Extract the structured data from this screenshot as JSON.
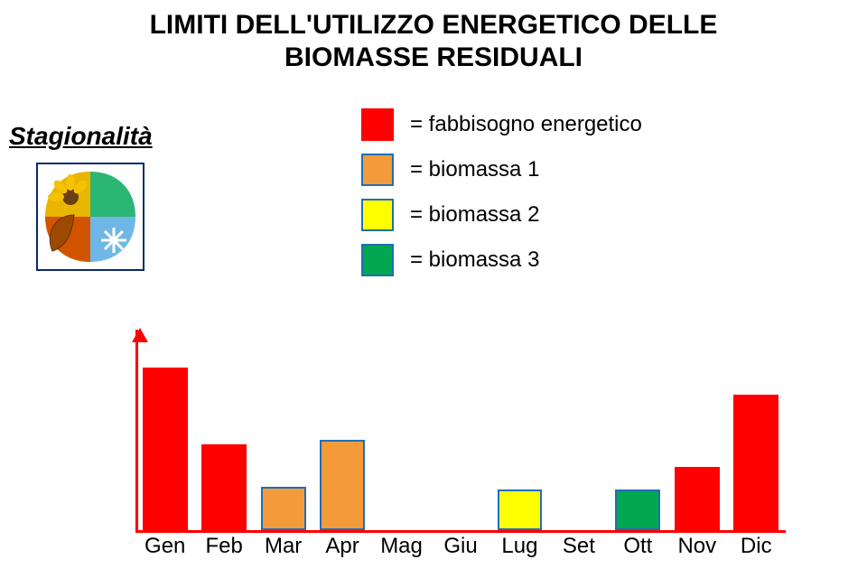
{
  "title": {
    "text": "LIMITI DELL'UTILIZZO ENERGETICO DELLE\nBIOMASSE RESIDUALI",
    "fontsize": 30,
    "color": "#000000",
    "weight": 900
  },
  "stagionalita": {
    "text": "Stagionalità",
    "fontsize": 28,
    "color": "#000000"
  },
  "legend": {
    "fontsize": 24,
    "swatch_border_color": "#1f6fb5",
    "swatch_border_width": 2,
    "items": [
      {
        "label": "= fabbisogno energetico",
        "color": "#ff0000",
        "border": "#ff0000"
      },
      {
        "label": "= biomassa 1",
        "color": "#f39a3a",
        "border": "#1f6fb5"
      },
      {
        "label": "= biomassa 2",
        "color": "#ffff00",
        "border": "#1f6fb5"
      },
      {
        "label": "= biomassa 3",
        "color": "#00a650",
        "border": "#1f6fb5"
      }
    ]
  },
  "chart": {
    "type": "bar",
    "axis_color": "#ff0000",
    "categories": [
      "Gen",
      "Feb",
      "Mar",
      "Apr",
      "Mag",
      "Giu",
      "Lug",
      "Set",
      "Ott",
      "Nov",
      "Dic"
    ],
    "values": [
      180,
      95,
      48,
      100,
      0,
      0,
      45,
      0,
      45,
      70,
      150
    ],
    "bar_colors": [
      "#ff0000",
      "#ff0000",
      "#f39a3a",
      "#f39a3a",
      "#ffffff",
      "#ffffff",
      "#ffff00",
      "#ffffff",
      "#00a650",
      "#ff0000",
      "#ff0000"
    ],
    "bar_borders": [
      "#ff0000",
      "#ff0000",
      "#1f6fb5",
      "#1f6fb5",
      "none",
      "none",
      "#1f6fb5",
      "none",
      "#1f6fb5",
      "#ff0000",
      "#ff0000"
    ],
    "bar_width": 0.76,
    "ylim": [
      0,
      210
    ],
    "label_fontsize": 24,
    "label_color": "#000000"
  },
  "season_icon": {
    "bg": "#ffffff",
    "border": "#0a2a6b",
    "quad_tl": "#e8b600",
    "quad_tr": "#2bb673",
    "quad_bl": "#d35400",
    "quad_br": "#6fb7e6",
    "sun_core": "#6b3f14",
    "sun_petal": "#f6c100",
    "leaf": "#9c4a00",
    "flake": "#ffffff"
  }
}
